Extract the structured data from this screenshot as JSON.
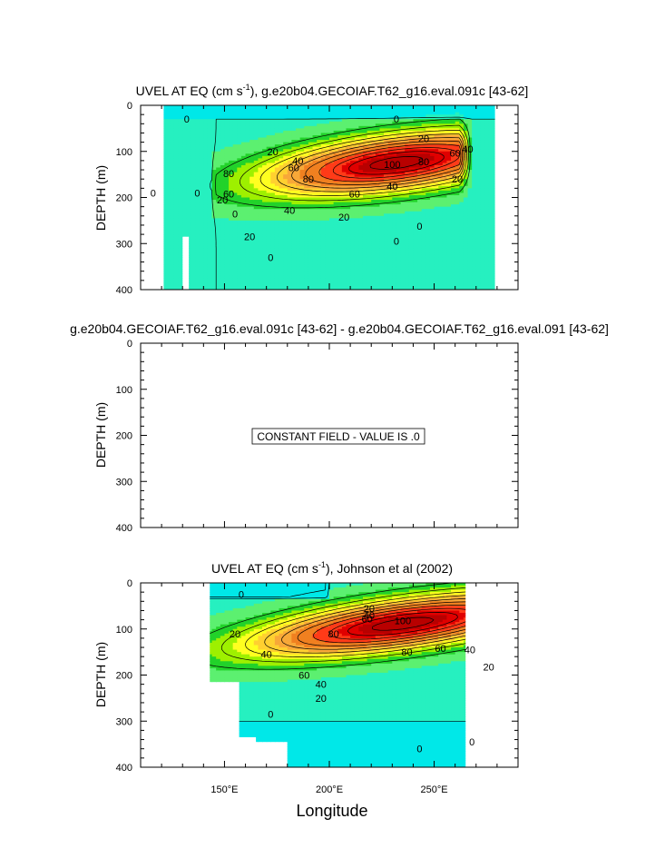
{
  "figure": {
    "xlabel": "Longitude",
    "xticks": [
      {
        "lon": 150,
        "label": "150°E"
      },
      {
        "lon": 200,
        "label": "200°E"
      },
      {
        "lon": 250,
        "label": "250°E"
      }
    ],
    "xlim": [
      110,
      290
    ],
    "ylim": [
      400,
      0
    ]
  },
  "chart_data": [
    {
      "type": "heatmap",
      "panel": "top",
      "title_pre": "UVEL AT EQ (cm s",
      "title_sup": "-1",
      "title_post": "), g.e20b04.GECOIAF.T62_g16.eval.091c [43-62]",
      "ylabel": "DEPTH (m)",
      "yticks": [
        0,
        100,
        200,
        300,
        400
      ],
      "ylim": [
        400,
        0
      ],
      "xlim": [
        110,
        290
      ],
      "data_range_lon": [
        121,
        279
      ],
      "contour_interval": 10,
      "core": {
        "lon": 230,
        "depth": 120,
        "max": 100
      },
      "contour_labels": [
        {
          "value": "0",
          "lon": 132,
          "depth": 30
        },
        {
          "value": "0",
          "lon": 116,
          "depth": 190
        },
        {
          "value": "0",
          "lon": 137,
          "depth": 190
        },
        {
          "value": "0",
          "lon": 155,
          "depth": 235
        },
        {
          "value": "0",
          "lon": 232,
          "depth": 30
        },
        {
          "value": "0",
          "lon": 232,
          "depth": 295
        },
        {
          "value": "0",
          "lon": 243,
          "depth": 262
        },
        {
          "value": "0",
          "lon": 172,
          "depth": 330
        },
        {
          "value": "20",
          "lon": 245,
          "depth": 72
        },
        {
          "value": "20",
          "lon": 173,
          "depth": 100
        },
        {
          "value": "20",
          "lon": 149,
          "depth": 205
        },
        {
          "value": "20",
          "lon": 162,
          "depth": 285
        },
        {
          "value": "20",
          "lon": 207,
          "depth": 242
        },
        {
          "value": "20",
          "lon": 261,
          "depth": 160
        },
        {
          "value": "40",
          "lon": 181,
          "depth": 228
        },
        {
          "value": "40",
          "lon": 230,
          "depth": 175
        },
        {
          "value": "40",
          "lon": 266,
          "depth": 95
        },
        {
          "value": "40",
          "lon": 185,
          "depth": 120
        },
        {
          "value": "60",
          "lon": 183,
          "depth": 135
        },
        {
          "value": "60",
          "lon": 212,
          "depth": 192
        },
        {
          "value": "60",
          "lon": 260,
          "depth": 103
        },
        {
          "value": "80",
          "lon": 190,
          "depth": 160
        },
        {
          "value": "80",
          "lon": 245,
          "depth": 122
        },
        {
          "value": "100",
          "lon": 230,
          "depth": 128
        },
        {
          "value": "80",
          "lon": 152,
          "depth": 148
        },
        {
          "value": "60",
          "lon": 152,
          "depth": 192
        }
      ]
    },
    {
      "type": "heatmap",
      "panel": "middle",
      "title": "g.e20b04.GECOIAF.T62_g16.eval.091c [43-62] - g.e20b04.GECOIAF.T62_g16.eval.091 [43-62]",
      "ylabel": "DEPTH (m)",
      "yticks": [
        0,
        100,
        200,
        300,
        400
      ],
      "ylim": [
        400,
        0
      ],
      "xlim": [
        110,
        290
      ],
      "constant_field_text": "CONSTANT FIELD - VALUE IS .0",
      "value": 0
    },
    {
      "type": "heatmap",
      "panel": "bottom",
      "title_pre": "UVEL AT EQ (cm s",
      "title_sup": "-1",
      "title_post": "), Johnson et al (2002)",
      "ylabel": "DEPTH (m)",
      "yticks": [
        0,
        100,
        200,
        300,
        400
      ],
      "ylim": [
        400,
        0
      ],
      "xlim": [
        110,
        290
      ],
      "data_range_lon": [
        143,
        265
      ],
      "contour_interval": 10,
      "core": {
        "lon": 235,
        "depth": 85,
        "max": 100
      },
      "contour_labels": [
        {
          "value": "0",
          "lon": 158,
          "depth": 25
        },
        {
          "value": "0",
          "lon": 172,
          "depth": 285
        },
        {
          "value": "0",
          "lon": 243,
          "depth": 360
        },
        {
          "value": "0",
          "lon": 268,
          "depth": 345
        },
        {
          "value": "20",
          "lon": 219,
          "depth": 55
        },
        {
          "value": "40",
          "lon": 219,
          "depth": 70
        },
        {
          "value": "60",
          "lon": 218,
          "depth": 78
        },
        {
          "value": "20",
          "lon": 155,
          "depth": 110
        },
        {
          "value": "40",
          "lon": 170,
          "depth": 155
        },
        {
          "value": "60",
          "lon": 188,
          "depth": 200
        },
        {
          "value": "80",
          "lon": 202,
          "depth": 110
        },
        {
          "value": "80",
          "lon": 237,
          "depth": 150
        },
        {
          "value": "60",
          "lon": 253,
          "depth": 142
        },
        {
          "value": "40",
          "lon": 267,
          "depth": 145
        },
        {
          "value": "40",
          "lon": 196,
          "depth": 220
        },
        {
          "value": "20",
          "lon": 196,
          "depth": 250
        },
        {
          "value": "20",
          "lon": 276,
          "depth": 182
        },
        {
          "value": "100",
          "lon": 235,
          "depth": 82
        }
      ]
    }
  ],
  "colors": {
    "background": "#ffffff",
    "axis": "#000000",
    "fill_scale": [
      "#00e8e8",
      "#26f0c0",
      "#5cf070",
      "#22d22a",
      "#9ef000",
      "#ffff20",
      "#ffd030",
      "#f8a838",
      "#f08020",
      "#ff3b18",
      "#e00000",
      "#b80000"
    ]
  }
}
